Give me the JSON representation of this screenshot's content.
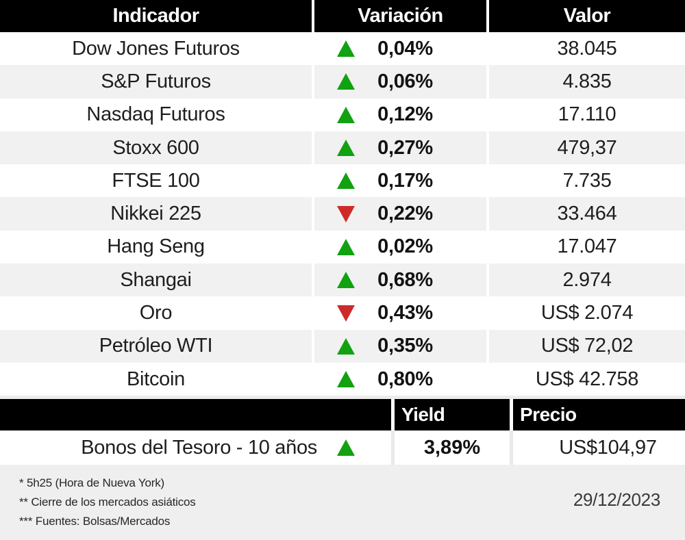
{
  "colors": {
    "green": "#11a111",
    "red": "#cf2a2a",
    "row-alt": "#f1f1f1",
    "ink": "#1e1e1e",
    "footer-bg": "#efefef"
  },
  "chart_data": {
    "type": "table",
    "columns": [
      "Indicador",
      "Variación",
      "Valor"
    ],
    "rows": [
      {
        "indicator": "Dow Jones Futuros",
        "direction": "up",
        "variation": "0,04%",
        "value": "38.045"
      },
      {
        "indicator": "S&P Futuros",
        "direction": "up",
        "variation": "0,06%",
        "value": "4.835"
      },
      {
        "indicator": "Nasdaq Futuros",
        "direction": "up",
        "variation": "0,12%",
        "value": "17.110"
      },
      {
        "indicator": "Stoxx 600",
        "direction": "up",
        "variation": "0,27%",
        "value": "479,37"
      },
      {
        "indicator": "FTSE 100",
        "direction": "up",
        "variation": "0,17%",
        "value": "7.735"
      },
      {
        "indicator": "Nikkei 225",
        "direction": "down",
        "variation": "0,22%",
        "value": "33.464"
      },
      {
        "indicator": "Hang Seng",
        "direction": "up",
        "variation": "0,02%",
        "value": "17.047"
      },
      {
        "indicator": "Shangai",
        "direction": "up",
        "variation": "0,68%",
        "value": "2.974"
      },
      {
        "indicator": "Oro",
        "direction": "down",
        "variation": "0,43%",
        "value": "US$ 2.074"
      },
      {
        "indicator": "Petróleo WTI",
        "direction": "up",
        "variation": "0,35%",
        "value": "US$ 72,02"
      },
      {
        "indicator": "Bitcoin",
        "direction": "up",
        "variation": "0,80%",
        "value": "US$ 42.758"
      }
    ],
    "bond_table": {
      "columns": [
        "Yield",
        "Precio"
      ],
      "row": {
        "label": "Bonos del Tesoro - 10 años",
        "direction": "up",
        "yield": "3,89%",
        "price": "US$104,97"
      }
    }
  },
  "footer": {
    "note1": "* 5h25 (Hora de Nueva York)",
    "note2": "** Cierre de los mercados asiáticos",
    "note3": "*** Fuentes: Bolsas/Mercados",
    "date": "29/12/2023"
  }
}
